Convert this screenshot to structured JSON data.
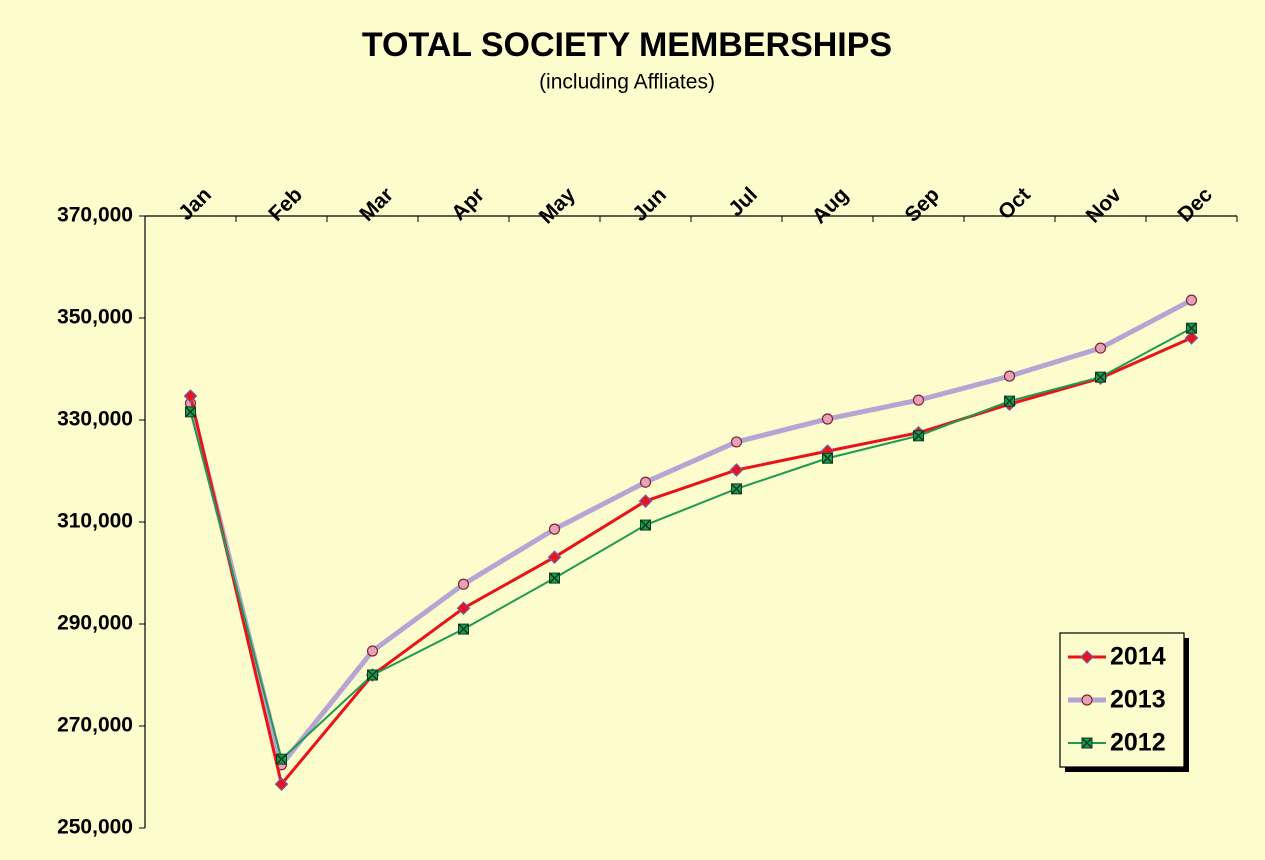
{
  "chart_data": {
    "type": "line",
    "title": "TOTAL SOCIETY MEMBERSHIPS",
    "subtitle": "(including Affliates)",
    "categories": [
      "Jan",
      "Feb",
      "Mar",
      "Apr",
      "May",
      "Jun",
      "Jul",
      "Aug",
      "Sep",
      "Oct",
      "Nov",
      "Dec"
    ],
    "series": [
      {
        "name": "2014",
        "color": "#e8141a",
        "marker": "diamond",
        "marker_color": "#e8141a",
        "marker_edge": "#7a5aa8",
        "width": 3,
        "values": [
          334700,
          258600,
          280000,
          293100,
          303100,
          314100,
          320200,
          323900,
          327500,
          333100,
          338200,
          346100
        ]
      },
      {
        "name": "2013",
        "color": "#b4a5d2",
        "marker": "circle",
        "marker_color": "#e0a4b4",
        "marker_edge": "#8a1f3a",
        "width": 5,
        "values": [
          333300,
          262400,
          284700,
          297800,
          308600,
          317800,
          325700,
          330200,
          333900,
          338600,
          344100,
          353500
        ]
      },
      {
        "name": "2012",
        "color": "#1f9a4f",
        "marker": "xsquare",
        "marker_color": "#1f9a4f",
        "marker_edge": "#0d3d20",
        "width": 2,
        "values": [
          331600,
          263500,
          280000,
          289000,
          299000,
          309400,
          316500,
          322500,
          326900,
          333700,
          338400,
          348000
        ]
      }
    ],
    "ylim": [
      250000,
      370000
    ],
    "yticks": [
      {
        "value": 250000,
        "label": "250,000"
      },
      {
        "value": 270000,
        "label": "270,000"
      },
      {
        "value": 290000,
        "label": "290,000"
      },
      {
        "value": 310000,
        "label": "310,000"
      },
      {
        "value": 330000,
        "label": "330,000"
      },
      {
        "value": 350000,
        "label": "350,000"
      },
      {
        "value": 370000,
        "label": "370,000"
      }
    ],
    "grid": false,
    "legend": "lower right"
  }
}
